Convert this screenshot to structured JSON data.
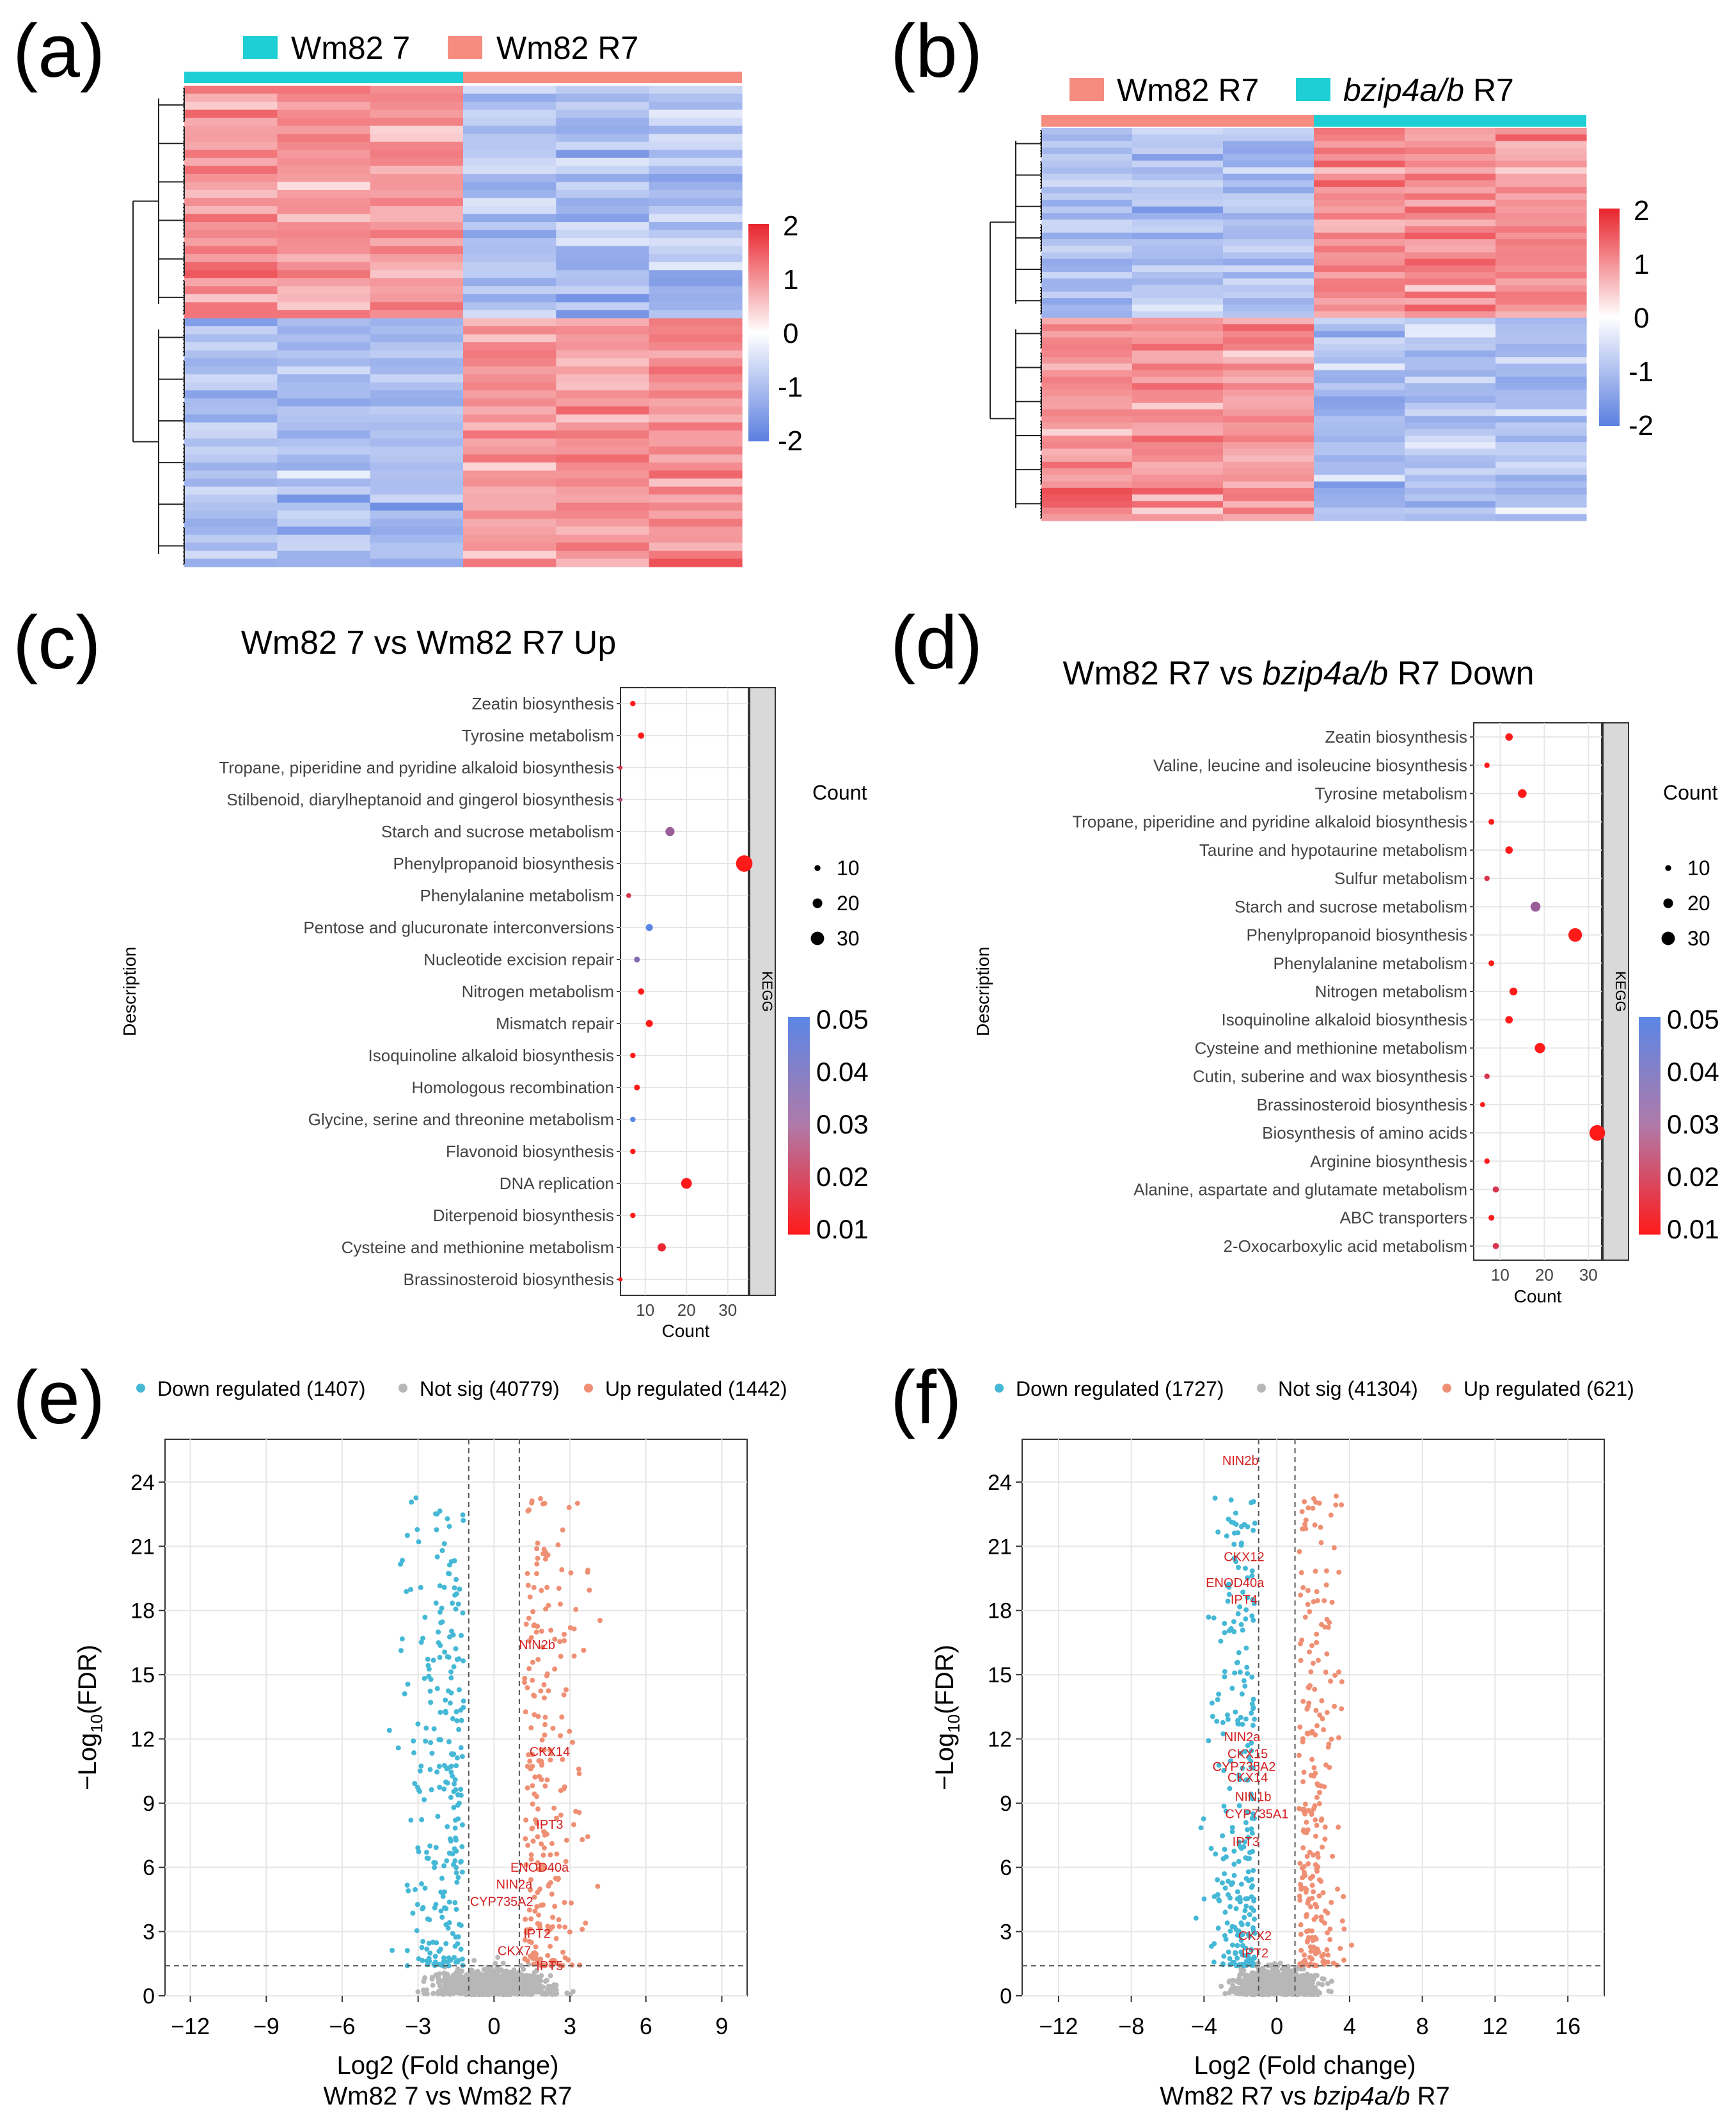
{
  "figure_title": "",
  "colors": {
    "heat_high": "#e8242c",
    "heat_mid": "#ffffff",
    "heat_low": "#5b7fe0",
    "group_teal": "#1fcfd6",
    "group_salmon": "#f68b80",
    "dot_high": "#ff1a1a",
    "dot_low": "#5b86e5",
    "down": "#45b8d6",
    "notsig": "#b7b7b7",
    "up": "#ef8f74",
    "gene_label": "#d42020",
    "grid": "#e6e6e6",
    "strip": "#d9d9d9"
  },
  "chart_data": [
    {
      "panel": "(a)",
      "type": "heatmap",
      "legend": [
        "Wm82 7",
        "Wm82 R7"
      ],
      "group_colors": [
        "#1fcfd6",
        "#f68b80"
      ],
      "columns": 6,
      "rows": 60,
      "pattern": [
        1,
        1,
        1,
        -1,
        -1,
        -1
      ],
      "scale_ticks": [
        "2",
        "1",
        "0",
        "-1",
        "-2"
      ]
    },
    {
      "panel": "(b)",
      "type": "heatmap",
      "legend": [
        "Wm82 R7",
        "bzip4a/b R7"
      ],
      "group_colors": [
        "#f68b80",
        "#1fcfd6"
      ],
      "columns": 6,
      "rows": 60,
      "pattern": [
        -1,
        -1,
        -1,
        1,
        1,
        1
      ],
      "scale_ticks": [
        "2",
        "1",
        "0",
        "-1",
        "-2"
      ]
    },
    {
      "panel": "(c)",
      "type": "scatter",
      "title": "Wm82 7 vs Wm82 R7 Up",
      "xlabel": "Count",
      "ylabel": "Description",
      "strip": "KEGG",
      "xlim": [
        4,
        35
      ],
      "xticks": [
        10,
        20,
        30
      ],
      "size_legend_title": "Count",
      "size_legend": [
        10,
        20,
        30
      ],
      "color_scale": [
        "0.05",
        "0.04",
        "0.03",
        "0.02",
        "0.01"
      ],
      "terms": [
        {
          "label": "Zeatin biosynthesis",
          "count": 7,
          "p": 0.01
        },
        {
          "label": "Tyrosine metabolism",
          "count": 9,
          "p": 0.01
        },
        {
          "label": "Tropane, piperidine and pyridine alkaloid biosynthesis",
          "count": 4,
          "p": 0.02
        },
        {
          "label": "Stilbenoid, diarylheptanoid and gingerol biosynthesis",
          "count": 4,
          "p": 0.03
        },
        {
          "label": "Starch and sucrose metabolism",
          "count": 16,
          "p": 0.035
        },
        {
          "label": "Phenylpropanoid biosynthesis",
          "count": 34,
          "p": 0.01
        },
        {
          "label": "Phenylalanine metabolism",
          "count": 6,
          "p": 0.02
        },
        {
          "label": "Pentose and glucuronate interconversions",
          "count": 11,
          "p": 0.05
        },
        {
          "label": "Nucleotide excision repair",
          "count": 8,
          "p": 0.04
        },
        {
          "label": "Nitrogen metabolism",
          "count": 9,
          "p": 0.01
        },
        {
          "label": "Mismatch repair",
          "count": 11,
          "p": 0.01
        },
        {
          "label": "Isoquinoline alkaloid biosynthesis",
          "count": 7,
          "p": 0.01
        },
        {
          "label": "Homologous recombination",
          "count": 8,
          "p": 0.01
        },
        {
          "label": "Glycine, serine and threonine metabolism",
          "count": 7,
          "p": 0.05
        },
        {
          "label": "Flavonoid biosynthesis",
          "count": 7,
          "p": 0.01
        },
        {
          "label": "DNA replication",
          "count": 20,
          "p": 0.01
        },
        {
          "label": "Diterpenoid biosynthesis",
          "count": 7,
          "p": 0.01
        },
        {
          "label": "Cysteine and methionine metabolism",
          "count": 14,
          "p": 0.015
        },
        {
          "label": "Brassinosteroid biosynthesis",
          "count": 4,
          "p": 0.01
        }
      ]
    },
    {
      "panel": "(d)",
      "type": "scatter",
      "title_parts": [
        "Wm82 R7 vs ",
        "bzip4a/b",
        " R7 Down"
      ],
      "xlabel": "Count",
      "ylabel": "Description",
      "strip": "KEGG",
      "xlim": [
        4,
        33
      ],
      "xticks": [
        10,
        20,
        30
      ],
      "size_legend_title": "Count",
      "size_legend": [
        10,
        20,
        30
      ],
      "color_scale": [
        "0.05",
        "0.04",
        "0.03",
        "0.02",
        "0.01"
      ],
      "terms": [
        {
          "label": "Zeatin biosynthesis",
          "count": 12,
          "p": 0.01
        },
        {
          "label": "Valine, leucine and isoleucine biosynthesis",
          "count": 7,
          "p": 0.01
        },
        {
          "label": "Tyrosine metabolism",
          "count": 15,
          "p": 0.01
        },
        {
          "label": "Tropane, piperidine and pyridine alkaloid biosynthesis",
          "count": 8,
          "p": 0.01
        },
        {
          "label": "Taurine and hypotaurine metabolism",
          "count": 12,
          "p": 0.01
        },
        {
          "label": "Sulfur metabolism",
          "count": 7,
          "p": 0.02
        },
        {
          "label": "Starch and sucrose metabolism",
          "count": 18,
          "p": 0.035
        },
        {
          "label": "Phenylpropanoid biosynthesis",
          "count": 27,
          "p": 0.01
        },
        {
          "label": "Phenylalanine metabolism",
          "count": 8,
          "p": 0.01
        },
        {
          "label": "Nitrogen metabolism",
          "count": 13,
          "p": 0.01
        },
        {
          "label": "Isoquinoline alkaloid biosynthesis",
          "count": 12,
          "p": 0.01
        },
        {
          "label": "Cysteine and methionine metabolism",
          "count": 19,
          "p": 0.01
        },
        {
          "label": "Cutin, suberine and wax biosynthesis",
          "count": 7,
          "p": 0.02
        },
        {
          "label": "Brassinosteroid biosynthesis",
          "count": 6,
          "p": 0.01
        },
        {
          "label": "Biosynthesis of amino acids",
          "count": 32,
          "p": 0.01
        },
        {
          "label": "Arginine biosynthesis",
          "count": 7,
          "p": 0.01
        },
        {
          "label": "Alanine, aspartate and glutamate metabolism",
          "count": 9,
          "p": 0.02
        },
        {
          "label": "ABC transporters",
          "count": 8,
          "p": 0.01
        },
        {
          "label": "2-Oxocarboxylic acid metabolism",
          "count": 9,
          "p": 0.02
        }
      ]
    },
    {
      "panel": "(e)",
      "type": "scatter",
      "subtype": "volcano",
      "legend": [
        "Down regulated (1407)",
        "Not sig (40779)",
        "Up regulated (1442)"
      ],
      "xlabel": "Log2 (Fold change)",
      "subtitle": "Wm82 7 vs Wm82 R7",
      "ylabel_parts": [
        "−Log",
        "10",
        "(FDR)"
      ],
      "xlim": [
        -13,
        10
      ],
      "ylim": [
        0,
        26
      ],
      "xticks": [
        -12,
        -9,
        -6,
        -3,
        0,
        3,
        6,
        9
      ],
      "yticks": [
        0,
        3,
        6,
        9,
        12,
        15,
        18,
        21,
        24
      ],
      "fc_threshold": 1,
      "fdr_line": 1.4,
      "genes": [
        {
          "name": "NIN2b",
          "x": 1.7,
          "y": 16.2
        },
        {
          "name": "CKX14",
          "x": 2.2,
          "y": 11.2
        },
        {
          "name": "IPT3",
          "x": 2.2,
          "y": 7.8
        },
        {
          "name": "ENOD40a",
          "x": 1.8,
          "y": 5.8
        },
        {
          "name": "NIN2a",
          "x": 0.8,
          "y": 5.0
        },
        {
          "name": "CYP735A2",
          "x": 0.3,
          "y": 4.2
        },
        {
          "name": "IPT2",
          "x": 1.7,
          "y": 2.7
        },
        {
          "name": "CKX7",
          "x": 0.8,
          "y": 1.9
        },
        {
          "name": "IPT5",
          "x": 2.2,
          "y": 1.2
        }
      ]
    },
    {
      "panel": "(f)",
      "type": "scatter",
      "subtype": "volcano",
      "legend": [
        "Down regulated (1727)",
        "Not sig (41304)",
        "Up regulated (621)"
      ],
      "xlabel": "Log2 (Fold change)",
      "subtitle_parts": [
        "Wm82 R7 vs ",
        "bzip4a/b",
        " R7"
      ],
      "ylabel_parts": [
        "−Log",
        "10",
        "(FDR)"
      ],
      "xlim": [
        -14,
        18
      ],
      "ylim": [
        0,
        26
      ],
      "xticks": [
        -12,
        -8,
        -4,
        0,
        4,
        8,
        12,
        16
      ],
      "yticks": [
        0,
        3,
        6,
        9,
        12,
        15,
        18,
        21,
        24
      ],
      "fc_threshold": 1,
      "fdr_line": 1.4,
      "genes": [
        {
          "name": "NIN2b",
          "x": -2.0,
          "y": 24.8
        },
        {
          "name": "CKX12",
          "x": -1.8,
          "y": 20.3
        },
        {
          "name": "ENOD40a",
          "x": -2.3,
          "y": 19.1
        },
        {
          "name": "IPT4",
          "x": -1.8,
          "y": 18.3
        },
        {
          "name": "NIN2a",
          "x": -1.9,
          "y": 11.9
        },
        {
          "name": "CKX15",
          "x": -1.6,
          "y": 11.1
        },
        {
          "name": "CYP735A2",
          "x": -1.8,
          "y": 10.5
        },
        {
          "name": "CKX14",
          "x": -1.6,
          "y": 10.0
        },
        {
          "name": "NIN1b",
          "x": -1.3,
          "y": 9.1
        },
        {
          "name": "CYP735A1",
          "x": -1.1,
          "y": 8.3
        },
        {
          "name": "IPT3",
          "x": -1.7,
          "y": 7.0
        },
        {
          "name": "CKX2",
          "x": -1.2,
          "y": 2.6
        },
        {
          "name": "IPT2",
          "x": -1.2,
          "y": 1.8
        }
      ]
    }
  ]
}
